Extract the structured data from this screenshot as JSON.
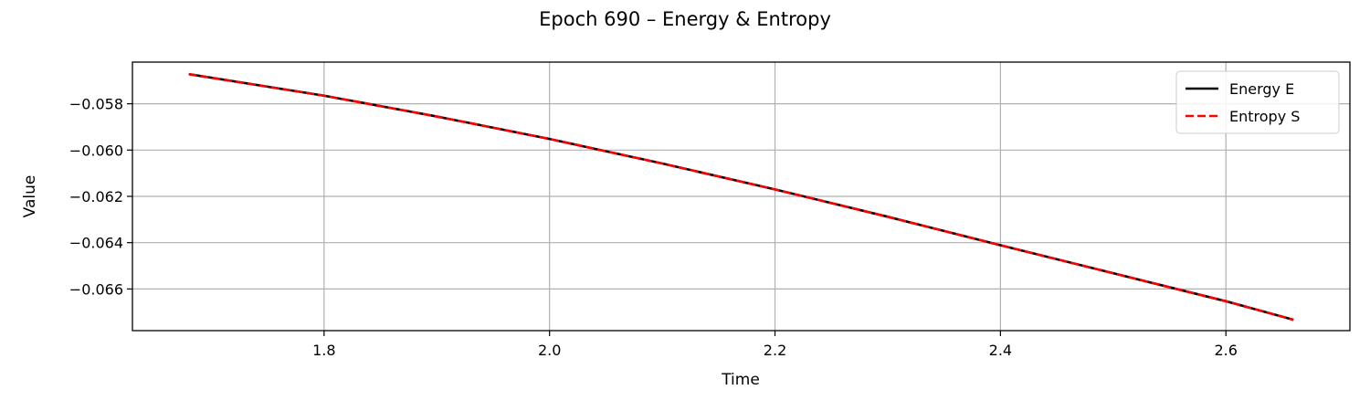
{
  "chart_data": {
    "type": "line",
    "title": "Epoch 690 – Energy & Entropy",
    "xlabel": "Time",
    "ylabel": "Value",
    "xlim": [
      1.63,
      2.71
    ],
    "ylim": [
      -0.0678,
      -0.0562
    ],
    "xticks": [
      1.8,
      2.0,
      2.2,
      2.4,
      2.6
    ],
    "xtick_labels": [
      "1.8",
      "2.0",
      "2.2",
      "2.4",
      "2.6"
    ],
    "yticks": [
      -0.058,
      -0.06,
      -0.062,
      -0.064,
      -0.066
    ],
    "ytick_labels": [
      "−0.058",
      "−0.060",
      "−0.062",
      "−0.064",
      "−0.066"
    ],
    "grid": true,
    "legend_position": "top-right",
    "series": [
      {
        "name": "Energy E",
        "color": "#000000",
        "style": "solid",
        "x": [
          1.68,
          1.8,
          1.9,
          2.0,
          2.1,
          2.2,
          2.3,
          2.4,
          2.5,
          2.6,
          2.66
        ],
        "y": [
          -0.05672,
          -0.05765,
          -0.05855,
          -0.05952,
          -0.06058,
          -0.0617,
          -0.06288,
          -0.06411,
          -0.06532,
          -0.06653,
          -0.06733
        ]
      },
      {
        "name": "Entropy S",
        "color": "#ff0000",
        "style": "dashed",
        "x": [
          1.68,
          1.8,
          1.9,
          2.0,
          2.1,
          2.2,
          2.3,
          2.4,
          2.5,
          2.6,
          2.66
        ],
        "y": [
          -0.05672,
          -0.05765,
          -0.05855,
          -0.05952,
          -0.06058,
          -0.0617,
          -0.06288,
          -0.06411,
          -0.06532,
          -0.06653,
          -0.06733
        ]
      }
    ]
  }
}
